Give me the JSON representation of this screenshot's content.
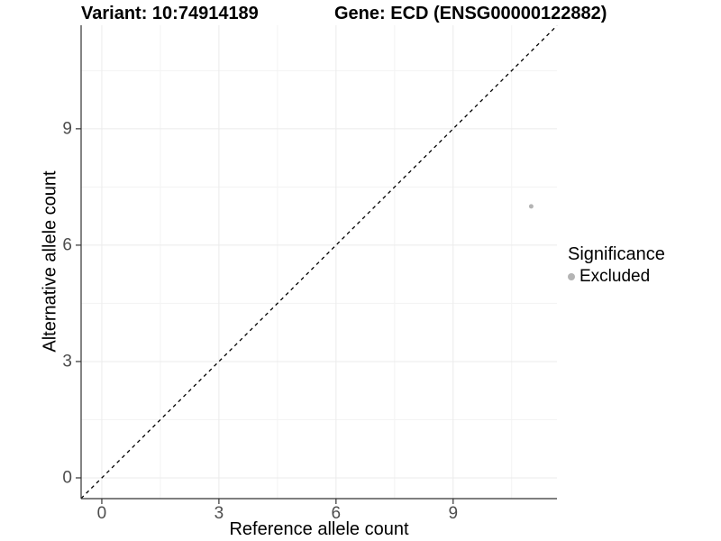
{
  "title": {
    "variant": "Variant: 10:74914189",
    "gene": "Gene: ECD (ENSG00000122882)"
  },
  "chart_data": {
    "type": "scatter",
    "xlabel": "Reference allele count",
    "ylabel": "Alternative allele count",
    "xlim": [
      -0.53,
      11.66
    ],
    "ylim": [
      -0.535,
      11.67
    ],
    "x_ticks": [
      0,
      3,
      6,
      9
    ],
    "y_ticks": [
      0,
      3,
      6,
      9
    ],
    "x_minor": [
      1.5,
      4.5,
      7.5,
      10.5
    ],
    "y_minor": [
      1.5,
      4.5,
      7.5,
      10.5
    ],
    "grid": true,
    "series": [
      {
        "name": "Excluded",
        "color": "#b4b4b4",
        "points": [
          {
            "x": 11,
            "y": 7
          }
        ]
      }
    ],
    "reference_line": {
      "type": "identity",
      "equation": "y = x",
      "style": "dashed",
      "color": "#000000"
    },
    "legend": {
      "title": "Significance",
      "position": "right",
      "items": [
        {
          "label": "Excluded",
          "color": "#b4b4b4"
        }
      ]
    }
  },
  "colors": {
    "background": "#ffffff",
    "axis_line": "#333333",
    "tick_mark": "#333333",
    "tick_text": "#4d4d4d",
    "grid_major": "#ebebeb",
    "grid_minor": "#f3f3f3",
    "point": "#b4b4b4"
  }
}
